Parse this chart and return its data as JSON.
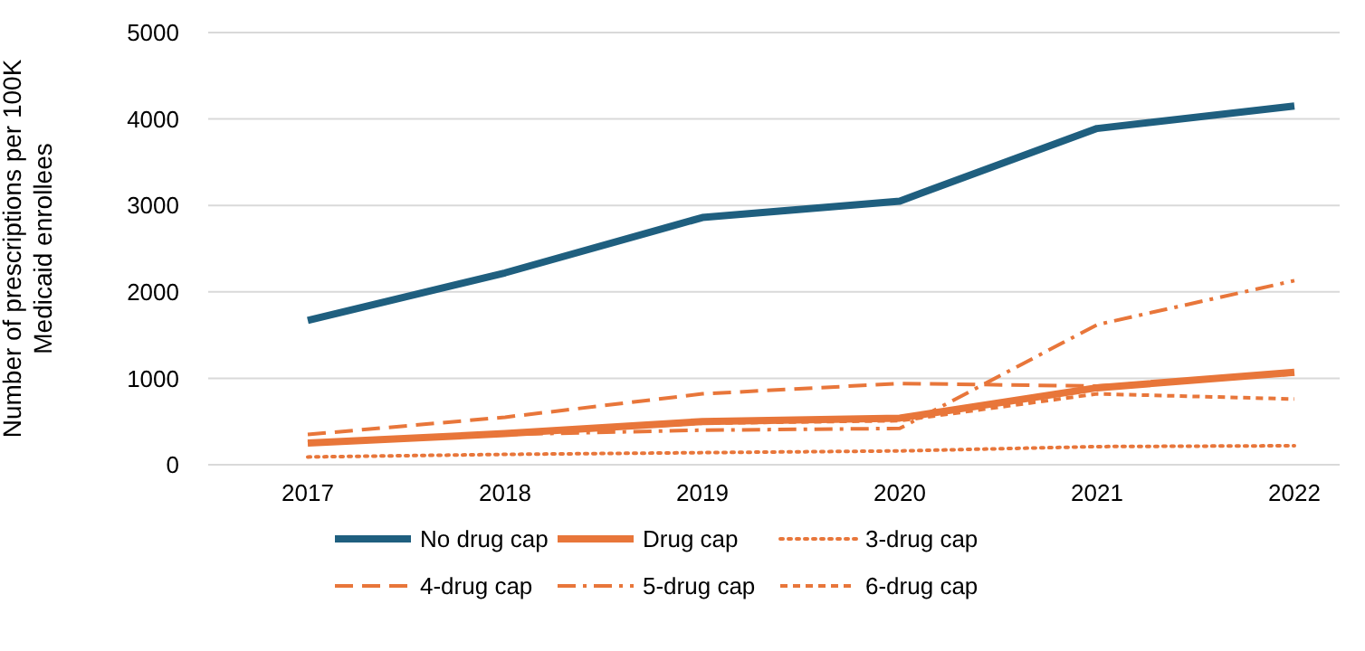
{
  "chart_data": {
    "type": "line",
    "ylabel": "Number of prescriptions per 100K Medicaid enrollees",
    "categories": [
      "2017",
      "2018",
      "2019",
      "2020",
      "2021",
      "2022"
    ],
    "ylim": [
      0,
      5000
    ],
    "yticks": [
      0,
      1000,
      2000,
      3000,
      4000,
      5000
    ],
    "grid": "y",
    "legend": "bottom",
    "series": [
      {
        "name": "No drug cap",
        "color": "#1f5f7f",
        "line_style": "solid",
        "values": [
          1670,
          2220,
          2860,
          3050,
          3890,
          4150
        ]
      },
      {
        "name": "Drug cap",
        "color": "#e8763a",
        "line_style": "solid",
        "values": [
          250,
          360,
          500,
          540,
          890,
          1070
        ]
      },
      {
        "name": "3-drug cap",
        "color": "#e8763a",
        "line_style": "dotted",
        "values": [
          90,
          120,
          140,
          160,
          210,
          220
        ]
      },
      {
        "name": "4-drug cap",
        "color": "#e8763a",
        "line_style": "longdash",
        "values": [
          350,
          550,
          820,
          940,
          910,
          1050
        ]
      },
      {
        "name": "5-drug cap",
        "color": "#e8763a",
        "line_style": "dashdot",
        "values": [
          250,
          350,
          400,
          420,
          1620,
          2130
        ]
      },
      {
        "name": "6-drug cap",
        "color": "#e8763a",
        "line_style": "dashed",
        "values": [
          250,
          360,
          480,
          510,
          820,
          760
        ]
      }
    ]
  }
}
